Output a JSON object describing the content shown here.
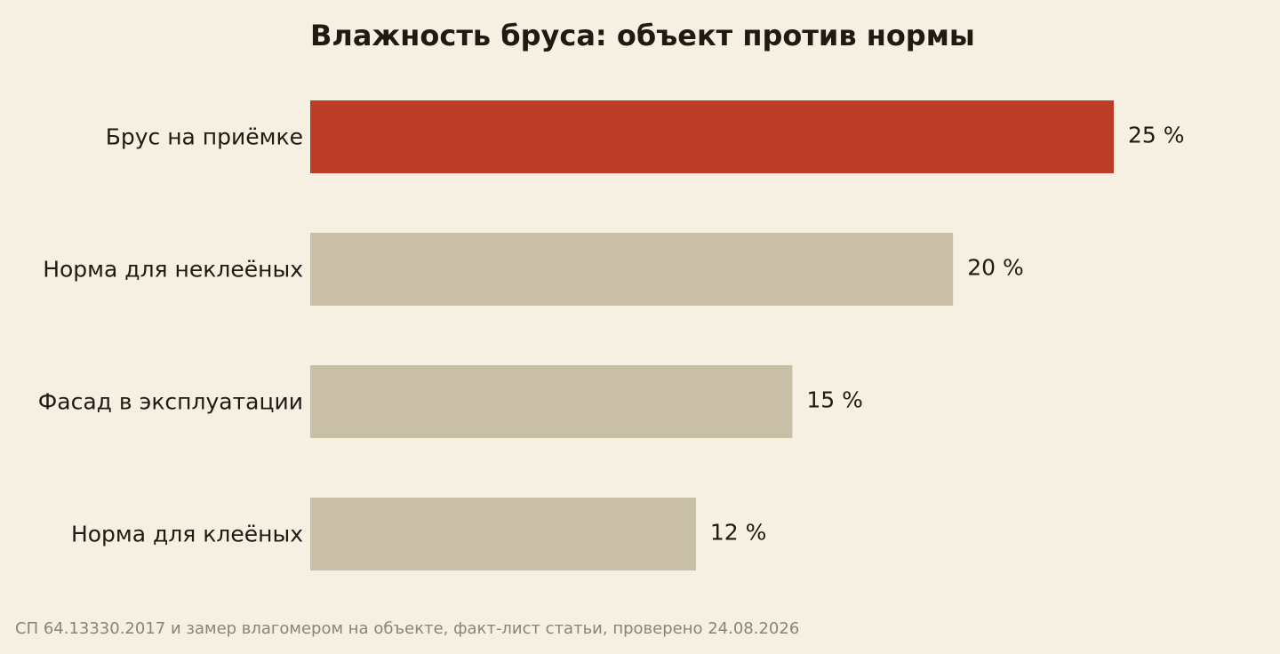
{
  "chart_data": {
    "type": "bar",
    "orientation": "horizontal",
    "title": "Влажность бруса: объект против нормы",
    "categories": [
      "Брус на приёмке",
      "Норма для неклеёных",
      "Фасад в эксплуатации",
      "Норма для клеёных"
    ],
    "values": [
      25,
      20,
      15,
      12
    ],
    "value_labels": [
      "25 %",
      "20 %",
      "15 %",
      "12 %"
    ],
    "unit": "%",
    "highlight_index": 0,
    "colors": {
      "highlight": "#bd3e28",
      "default": "#c9bfa6",
      "text": "#1f1a12",
      "background": "#f6f0e3",
      "note": "#8a8475"
    },
    "xlim": [
      0,
      25
    ],
    "grid": false,
    "legend": "none",
    "xlabel": "",
    "ylabel": ""
  },
  "footer": {
    "source": "СП 64.13330.2017 и замер влагомером на объекте, факт-лист статьи, проверено 24.08.2026"
  }
}
